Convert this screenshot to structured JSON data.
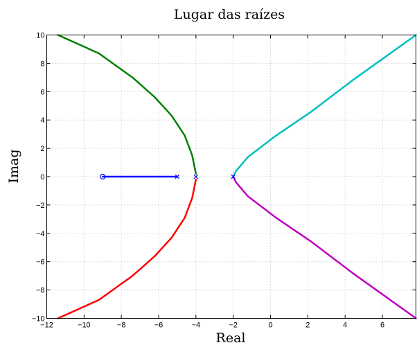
{
  "chart_data": {
    "type": "line",
    "title": "Lugar das raízes",
    "xlabel": "Real",
    "ylabel": "Imag",
    "xlim": [
      -12,
      7.8
    ],
    "ylim": [
      -10,
      10
    ],
    "xticks": [
      -12,
      -10,
      -8,
      -6,
      -4,
      -2,
      0,
      2,
      4,
      6
    ],
    "yticks": [
      -10,
      -8,
      -6,
      -4,
      -2,
      0,
      2,
      4,
      6,
      8,
      10
    ],
    "grid": true,
    "series": [
      {
        "color": "#0000ff",
        "points": [
          [
            -9,
            0
          ],
          [
            -5,
            0
          ]
        ]
      },
      {
        "color": "#008000",
        "points": [
          [
            -4,
            0.2
          ],
          [
            -4.2,
            1.5
          ],
          [
            -4.6,
            2.9
          ],
          [
            -5.3,
            4.3
          ],
          [
            -6.2,
            5.6
          ],
          [
            -7.4,
            7.0
          ],
          [
            -9.2,
            8.7
          ],
          [
            -11.4,
            10
          ]
        ]
      },
      {
        "color": "#ff0000",
        "points": [
          [
            -4,
            -0.2
          ],
          [
            -4.2,
            -1.5
          ],
          [
            -4.6,
            -2.9
          ],
          [
            -5.3,
            -4.3
          ],
          [
            -6.2,
            -5.6
          ],
          [
            -7.4,
            -7.0
          ],
          [
            -9.2,
            -8.7
          ],
          [
            -11.4,
            -10
          ]
        ]
      },
      {
        "color": "#00bfbf",
        "points": [
          [
            -2,
            0
          ],
          [
            -1.85,
            0.4
          ],
          [
            -1.2,
            1.4
          ],
          [
            0.3,
            2.9
          ],
          [
            2.2,
            4.6
          ],
          [
            4.4,
            6.8
          ],
          [
            7.8,
            10
          ]
        ]
      },
      {
        "color": "#bf00bf",
        "points": [
          [
            -2,
            0
          ],
          [
            -1.85,
            -0.4
          ],
          [
            -1.2,
            -1.4
          ],
          [
            0.3,
            -2.9
          ],
          [
            2.2,
            -4.6
          ],
          [
            4.4,
            -6.8
          ],
          [
            7.8,
            -10
          ]
        ]
      }
    ],
    "zeros": [
      [
        -9,
        0
      ]
    ],
    "poles": [
      [
        -5,
        0
      ],
      [
        -4,
        0
      ],
      [
        -2,
        0
      ]
    ],
    "marker_color": "#0000ff"
  }
}
